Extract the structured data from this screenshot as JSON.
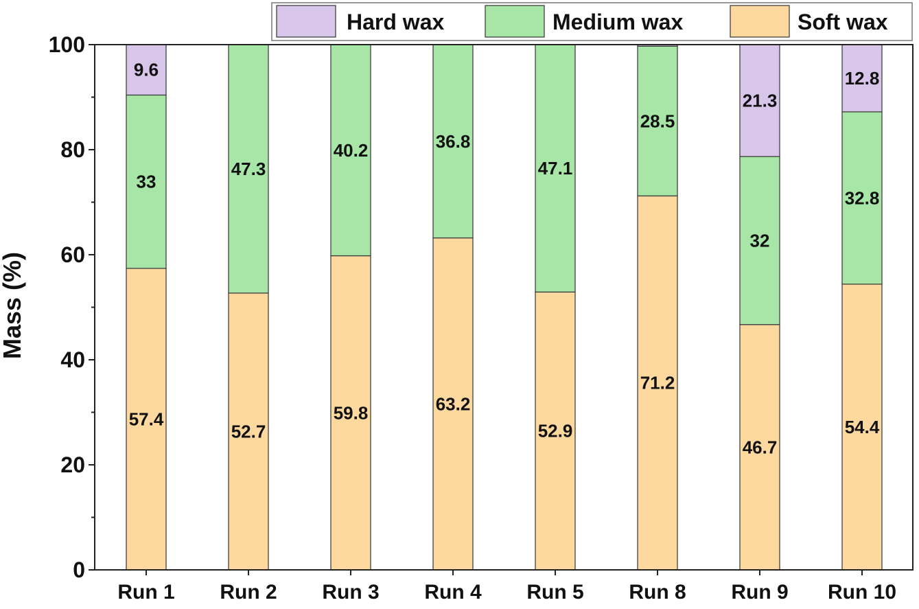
{
  "chart_data": {
    "type": "bar",
    "stacked": true,
    "title": "",
    "xlabel": "",
    "ylabel": "Mass (%)",
    "ylim": [
      0,
      100
    ],
    "yticks": [
      0,
      20,
      40,
      60,
      80,
      100
    ],
    "categories": [
      "Run 1",
      "Run 2",
      "Run 3",
      "Run 4",
      "Run 5",
      "Run 8",
      "Run 9",
      "Run 10"
    ],
    "series": [
      {
        "name": "Soft wax",
        "color": "#fdd9a0",
        "values": [
          57.4,
          52.7,
          59.8,
          63.2,
          52.9,
          71.2,
          46.7,
          54.4
        ],
        "labels": [
          "57.4",
          "52.7",
          "59.8",
          "63.2",
          "52.9",
          "71.2",
          "46.7",
          "54.4"
        ]
      },
      {
        "name": "Medium wax",
        "color": "#a8e6a8",
        "values": [
          33,
          47.3,
          40.2,
          36.8,
          47.1,
          28.5,
          32,
          32.8
        ],
        "labels": [
          "33",
          "47.3",
          "40.2",
          "36.8",
          "47.1",
          "28.5",
          "32",
          "32.8"
        ]
      },
      {
        "name": "Hard wax",
        "color": "#d8c6ea",
        "values": [
          9.6,
          0,
          0,
          0,
          0,
          0.3,
          21.3,
          12.8
        ],
        "labels": [
          "9.6",
          "",
          "",
          "",
          "",
          "",
          "21.3",
          "12.8"
        ]
      }
    ],
    "legend": {
      "placement": "top-right",
      "order": [
        "Hard wax",
        "Medium wax",
        "Soft wax"
      ]
    },
    "grid": false
  }
}
